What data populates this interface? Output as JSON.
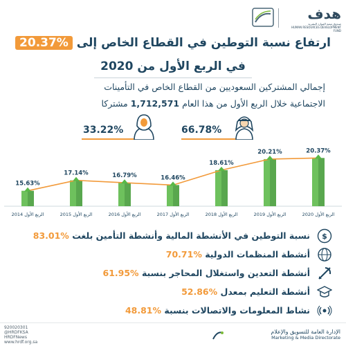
{
  "header": {
    "brand_ar": "هدف",
    "brand_sub_ar": "صندوق تنمية الموارد البشرية",
    "brand_sub_en": "HUMAN RESOURCES DEVELOPMENT FUND"
  },
  "title": {
    "line1_prefix": "ارتفاع نسبة التوطين في القطاع الخاص إلى",
    "line1_value": "20.37%",
    "line2": "في الربع الأول من 2020"
  },
  "subtitle": {
    "line1": "إجمالي المشتركين السعوديين من القطاع الخاص في التأمينات",
    "line2_prefix": "الاجتماعية خلال الربع الأول من هذا العام",
    "line2_number": "1,712,571",
    "line2_suffix": "مشتركا"
  },
  "gender": {
    "male_pct": "66.78%",
    "female_pct": "33.22%"
  },
  "chart_data": {
    "type": "line",
    "series_style": "line-with-bars",
    "categories": [
      "الربع الأول 2014",
      "الربع الأول 2015",
      "الربع الأول 2016",
      "الربع الأول 2017",
      "الربع الأول 2018",
      "الربع الأول 2019",
      "الربع الأول 2020"
    ],
    "values": [
      15.63,
      17.14,
      16.79,
      16.46,
      18.61,
      20.21,
      20.37
    ],
    "value_labels": [
      "15.63%",
      "17.14%",
      "16.79%",
      "16.46%",
      "18.61%",
      "20.21%",
      "20.37%"
    ],
    "ylim": [
      14,
      21
    ],
    "grid": false,
    "title": "",
    "xlabel": "",
    "ylabel": ""
  },
  "sectors": [
    {
      "icon": "finance-icon",
      "label": "نسبة التوطين في الأنشطة المالية وأنشطة التأمين بلغت",
      "value": "83.01%"
    },
    {
      "icon": "globe-icon",
      "label": "أنشطة المنظمات الدولية",
      "value": "70.71%"
    },
    {
      "icon": "mining-icon",
      "label": "أنشطة التعدين واستغلال المحاجر بنسبة",
      "value": "61.95%"
    },
    {
      "icon": "education-icon",
      "label": "أنشطة التعليم بمعدل",
      "value": "52.86%"
    },
    {
      "icon": "telecom-icon",
      "label": "نشاط المعلومات والاتصالات بنسبة",
      "value": "48.81%"
    }
  ],
  "footer": {
    "contact": [
      "920020301",
      "@HRDFKSA",
      "HRDFNews",
      "www.hrdf.org.sa"
    ],
    "dept_ar": "الإدارة العامة للتسويق والإعلام",
    "dept_en": "Marketing & Media Directorate"
  },
  "colors": {
    "navy": "#1f4660",
    "orange": "#f29a3a",
    "green": "#58b947",
    "green_dark": "#3f9a35",
    "bar_base": "#e6f2dc"
  }
}
